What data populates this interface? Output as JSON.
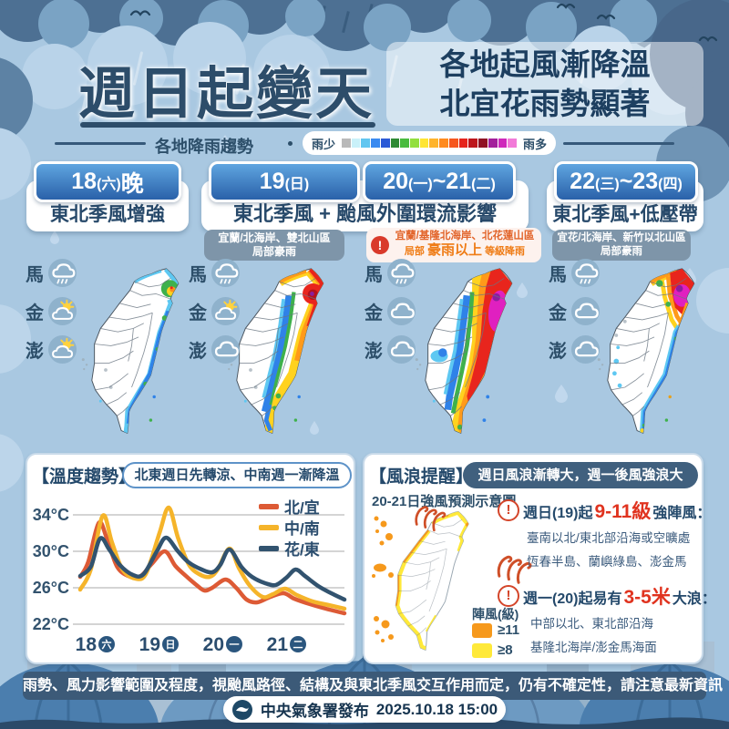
{
  "header": {
    "title": "週日起變天",
    "subtitle_line1": "各地起風漸降溫",
    "subtitle_line2": "北宜花雨勢顯著"
  },
  "rain_legend": {
    "label": "各地降雨趨勢",
    "less": "雨少",
    "more": "雨多",
    "colors": [
      "#b9b9b9",
      "#c9f1f9",
      "#62c6f0",
      "#3a8af0",
      "#2b5ad6",
      "#2e8a34",
      "#49bb3e",
      "#92df3e",
      "#ffe532",
      "#ffb42c",
      "#ff8a1e",
      "#f6571f",
      "#e6241c",
      "#bd151b",
      "#8f1224",
      "#a31e9b",
      "#cf28bb",
      "#f27ad8"
    ]
  },
  "columns": [
    {
      "date_text": "18(六)晚",
      "date_segments": [
        {
          "t": "18",
          "small": false
        },
        {
          "t": "(六)",
          "small": true
        },
        {
          "t": "晚",
          "small": false
        }
      ],
      "desc": "東北季風增強",
      "islands": [
        {
          "name": "馬",
          "icon": "rain-cloud"
        },
        {
          "name": "金",
          "icon": "sun-cloud"
        },
        {
          "name": "澎",
          "icon": "sun-cloud"
        }
      ]
    },
    {
      "date_text": "19(日)",
      "date_segments": [
        {
          "t": "19",
          "small": false
        },
        {
          "t": "(日)",
          "small": true
        }
      ],
      "desc": "東北季風 + 颱風外圍環流影響",
      "islands": [
        {
          "name": "馬",
          "icon": "rain-cloud"
        },
        {
          "name": "金",
          "icon": "sun-cloud"
        },
        {
          "name": "澎",
          "icon": "cloud"
        }
      ]
    },
    {
      "date_text": "20(一)~21(二)",
      "date_segments": [
        {
          "t": "20",
          "small": false
        },
        {
          "t": "(一)",
          "small": true
        },
        {
          "t": "~21",
          "small": false
        },
        {
          "t": "(二)",
          "small": true
        }
      ],
      "desc": "",
      "islands": [
        {
          "name": "馬",
          "icon": "rain-cloud"
        },
        {
          "name": "金",
          "icon": "cloud"
        },
        {
          "name": "澎",
          "icon": "cloud"
        }
      ]
    },
    {
      "date_text": "22(三)~23(四)",
      "date_segments": [
        {
          "t": "22",
          "small": false
        },
        {
          "t": "(三)",
          "small": true
        },
        {
          "t": "~23",
          "small": false
        },
        {
          "t": "(四)",
          "small": true
        }
      ],
      "desc": "東北季風+低壓帶",
      "islands": [
        {
          "name": "馬",
          "icon": "rain-cloud"
        },
        {
          "name": "金",
          "icon": "cloud"
        },
        {
          "name": "澎",
          "icon": "cloud"
        }
      ]
    }
  ],
  "notes": [
    {
      "type": "slate",
      "line1": "宜蘭/北海岸、雙北山區",
      "line2": "局部豪雨"
    },
    {
      "type": "alert",
      "line1": "宜蘭/基隆北海岸、北花蓮山區",
      "line2_prefix": "局部",
      "line2_em": "豪雨以上",
      "line2_suffix": "等級降雨"
    },
    {
      "type": "slate",
      "line1": "宜花/北海岸、新竹以北山區",
      "line2": "局部豪雨"
    }
  ],
  "temp_panel": {
    "title": "【溫度趨勢】",
    "subtitle": "北東週日先轉涼、中南週一漸降溫"
  },
  "chart_data": {
    "type": "line",
    "ylabel": "°C",
    "yticks": [
      "34°C",
      "30°C",
      "26°C",
      "22°C"
    ],
    "ytick_values": [
      34,
      30,
      26,
      22
    ],
    "ylim": [
      21.5,
      35.5
    ],
    "xlabels": [
      {
        "num": "18",
        "wd": "六"
      },
      {
        "num": "19",
        "wd": "日"
      },
      {
        "num": "20",
        "wd": "一"
      },
      {
        "num": "21",
        "wd": "二"
      }
    ],
    "series": [
      {
        "name": "北/宜",
        "color": "#dd5a35",
        "points": [
          [
            0,
            27.2
          ],
          [
            0.03,
            28.8
          ],
          [
            0.07,
            33.1
          ],
          [
            0.1,
            31.5
          ],
          [
            0.14,
            28.3
          ],
          [
            0.19,
            27.2
          ],
          [
            0.23,
            27.3
          ],
          [
            0.27,
            28.6
          ],
          [
            0.32,
            30.0
          ],
          [
            0.36,
            28.4
          ],
          [
            0.4,
            27.3
          ],
          [
            0.44,
            26.3
          ],
          [
            0.47,
            25.7
          ],
          [
            0.5,
            26.0
          ],
          [
            0.55,
            26.9
          ],
          [
            0.59,
            26.0
          ],
          [
            0.63,
            24.7
          ],
          [
            0.67,
            24.4
          ],
          [
            0.72,
            25.0
          ],
          [
            0.77,
            25.4
          ],
          [
            0.81,
            24.8
          ],
          [
            0.87,
            24.2
          ],
          [
            0.93,
            23.7
          ],
          [
            1,
            23.2
          ]
        ]
      },
      {
        "name": "中/南",
        "color": "#f5b42a",
        "points": [
          [
            0,
            25.8
          ],
          [
            0.04,
            28.0
          ],
          [
            0.085,
            33.9
          ],
          [
            0.12,
            31.0
          ],
          [
            0.16,
            28.0
          ],
          [
            0.21,
            27.0
          ],
          [
            0.25,
            27.6
          ],
          [
            0.3,
            32.0
          ],
          [
            0.335,
            34.8
          ],
          [
            0.37,
            31.5
          ],
          [
            0.41,
            28.6
          ],
          [
            0.45,
            27.5
          ],
          [
            0.49,
            27.2
          ],
          [
            0.52,
            28.0
          ],
          [
            0.565,
            30.3
          ],
          [
            0.6,
            28.2
          ],
          [
            0.64,
            26.3
          ],
          [
            0.69,
            25.0
          ],
          [
            0.73,
            25.3
          ],
          [
            0.775,
            25.9
          ],
          [
            0.82,
            25.2
          ],
          [
            0.88,
            24.5
          ],
          [
            0.94,
            24.1
          ],
          [
            1,
            23.7
          ]
        ]
      },
      {
        "name": "花/東",
        "color": "#32536f",
        "points": [
          [
            0,
            27.3
          ],
          [
            0.04,
            28.3
          ],
          [
            0.075,
            31.4
          ],
          [
            0.11,
            30.2
          ],
          [
            0.15,
            28.5
          ],
          [
            0.2,
            27.4
          ],
          [
            0.24,
            27.5
          ],
          [
            0.29,
            30.0
          ],
          [
            0.325,
            31.5
          ],
          [
            0.37,
            30.0
          ],
          [
            0.41,
            28.8
          ],
          [
            0.46,
            28.0
          ],
          [
            0.5,
            27.7
          ],
          [
            0.53,
            28.5
          ],
          [
            0.565,
            30.2
          ],
          [
            0.61,
            28.3
          ],
          [
            0.65,
            27.2
          ],
          [
            0.7,
            26.5
          ],
          [
            0.74,
            26.3
          ],
          [
            0.78,
            27.1
          ],
          [
            0.815,
            28.0
          ],
          [
            0.85,
            27.3
          ],
          [
            0.9,
            26.2
          ],
          [
            0.95,
            25.4
          ],
          [
            1,
            24.7
          ]
        ]
      }
    ]
  },
  "wind_panel": {
    "title": "【風浪提醒】",
    "subtitle": "週日風浪漸轉大，週一後風強浪大",
    "map_caption": "20-21日強風預測示意圖",
    "gust_legend_title": "陣風(級)",
    "gust_legend": [
      {
        "color": "#f6991c",
        "label": "≥11"
      },
      {
        "color": "#ffe93a",
        "label": "≥8"
      }
    ],
    "warnings": [
      {
        "pre": "週日(19)起",
        "em": "9-11級",
        "post": "強陣風：",
        "line1": "臺南以北/東北部沿海或空曠處",
        "line2": "恆春半島、蘭嶼綠島、澎金馬"
      },
      {
        "pre": "週一(20)起易有",
        "em": "3-5米",
        "post": "大浪：",
        "line1": "中部以北、東北部沿海",
        "line2": "基隆北海岸/澎金馬海面"
      }
    ]
  },
  "footer": {
    "notice": "雨勢、風力影響範圍及程度，視颱風路徑、結構及與東北季風交互作用而定，仍有不確定性，請注意最新資訊",
    "source": "中央氣象署發布",
    "datetime": "2025.10.18 15:00"
  }
}
